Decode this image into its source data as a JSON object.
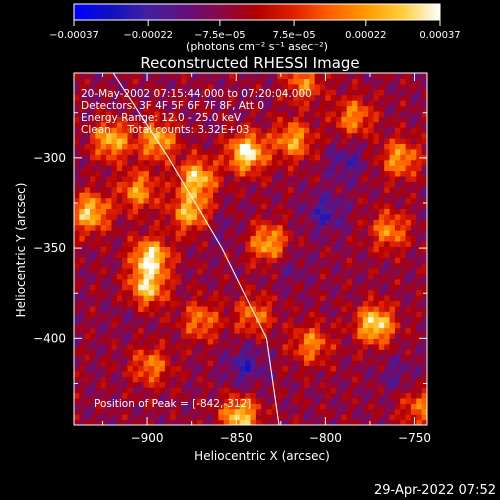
{
  "chart_data": {
    "type": "heatmap",
    "title": "Reconstructed RHESSI Image",
    "xlabel": "Heliocentric X (arcsec)",
    "ylabel": "Heliocentric Y (arcsec)",
    "xlim": [
      -941,
      -743
    ],
    "ylim": [
      -448,
      -253
    ],
    "xticks": [
      {
        "value": -900,
        "label": "−900"
      },
      {
        "value": -850,
        "label": "−850"
      },
      {
        "value": -800,
        "label": "−800"
      },
      {
        "value": -750,
        "label": "−750"
      }
    ],
    "yticks": [
      {
        "value": -300,
        "label": "−300"
      },
      {
        "value": -350,
        "label": "−350"
      },
      {
        "value": -400,
        "label": "−400"
      }
    ],
    "colorbar": {
      "min": -0.00037,
      "max": 0.00037,
      "colors": [
        "#0000ff",
        "#1010c0",
        "#4020a0",
        "#601080",
        "#8a0848",
        "#b00000",
        "#e02000",
        "#ff6000",
        "#ff9a00",
        "#ffcf40",
        "#ffffff"
      ],
      "ticks": [
        {
          "value": -0.00037,
          "label": "−0.00037"
        },
        {
          "value": -0.00022,
          "label": "−0.00022"
        },
        {
          "value": -7.5e-05,
          "label": "−7.5e−05"
        },
        {
          "value": 7.5e-05,
          "label": "7.5e−05"
        },
        {
          "value": 0.00022,
          "label": "0.00022"
        },
        {
          "value": 0.00037,
          "label": "0.00037"
        }
      ],
      "unit_label": "(photons cm⁻² s⁻¹ asec⁻²)"
    },
    "annotations": [
      "20-May-2002 07:15:44.000 to 07:20:04.000",
      "Detectors: 3F 4F 5F 6F 7F 8F, Att 0",
      "Energy Range: 12.0 - 25.0 keV",
      "Clean     Total counts: 3.32E+03"
    ],
    "peak_label": "Position of Peak = [-842,-312]",
    "limb_line": [
      [
        -919,
        -253
      ],
      [
        -888,
        -300
      ],
      [
        -858,
        -350
      ],
      [
        -833,
        -400
      ],
      [
        -826,
        -448
      ]
    ],
    "hotspots": [
      {
        "x": -844,
        "y": -297,
        "value": 0.00037
      },
      {
        "x": -872,
        "y": -311,
        "value": 0.0003
      },
      {
        "x": -876,
        "y": -330,
        "value": 0.00026
      },
      {
        "x": -932,
        "y": -330,
        "value": 0.0003
      },
      {
        "x": -920,
        "y": -290,
        "value": 0.00027
      },
      {
        "x": -894,
        "y": -290,
        "value": 0.00026
      },
      {
        "x": -898,
        "y": -355,
        "value": 0.00034
      },
      {
        "x": -900,
        "y": -372,
        "value": 0.00028
      },
      {
        "x": -898,
        "y": -415,
        "value": 0.00018
      },
      {
        "x": -848,
        "y": -443,
        "value": 0.0003
      },
      {
        "x": -772,
        "y": -392,
        "value": 0.00034
      },
      {
        "x": -818,
        "y": -290,
        "value": 0.00024
      },
      {
        "x": -758,
        "y": -300,
        "value": 0.00023
      },
      {
        "x": -764,
        "y": -340,
        "value": 0.0002
      },
      {
        "x": -832,
        "y": -347,
        "value": 0.00026
      },
      {
        "x": -808,
        "y": -403,
        "value": 0.00019
      },
      {
        "x": -840,
        "y": -387,
        "value": 0.00017
      },
      {
        "x": -870,
        "y": -390,
        "value": 0.00018
      },
      {
        "x": -784,
        "y": -277,
        "value": 0.0002
      },
      {
        "x": -905,
        "y": -318,
        "value": 0.00022
      },
      {
        "x": -812,
        "y": -258,
        "value": 0.00018
      },
      {
        "x": -747,
        "y": -438,
        "value": 0.00016
      }
    ],
    "coldspots": [
      {
        "x": -800,
        "y": -330,
        "value": -0.00022
      },
      {
        "x": -788,
        "y": -302,
        "value": -0.00019
      },
      {
        "x": -845,
        "y": -415,
        "value": -0.00022
      },
      {
        "x": -858,
        "y": -340,
        "value": -0.00012
      },
      {
        "x": -820,
        "y": -360,
        "value": -0.00014
      },
      {
        "x": -760,
        "y": -420,
        "value": -0.00015
      },
      {
        "x": -910,
        "y": -385,
        "value": -0.0001
      }
    ]
  },
  "timestamp": "29-Apr-2022 07:52"
}
